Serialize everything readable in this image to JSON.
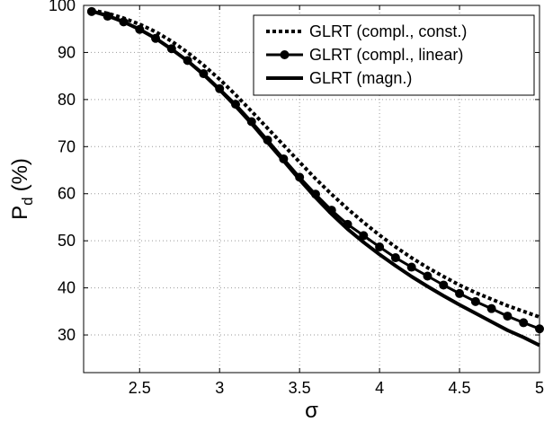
{
  "chart_data": {
    "type": "line",
    "title": "",
    "xlabel": "σ",
    "ylabel_main": "P",
    "ylabel_sub": "d",
    "ylabel_unit": "(%)",
    "xlim": [
      2.15,
      5.0
    ],
    "ylim": [
      22,
      100
    ],
    "xticks": [
      2.5,
      3,
      3.5,
      4,
      4.5,
      5
    ],
    "xtick_labels": [
      "2.5",
      "3",
      "3.5",
      "4",
      "4.5",
      "5"
    ],
    "yticks": [
      30,
      40,
      50,
      60,
      70,
      80,
      90,
      100
    ],
    "ytick_labels": [
      "30",
      "40",
      "50",
      "60",
      "70",
      "80",
      "90",
      "100"
    ],
    "grid": true,
    "legend_position": "top-right",
    "series": [
      {
        "name": "GLRT (compl., const.)",
        "style": "dotted",
        "x": [
          2.2,
          2.3,
          2.4,
          2.5,
          2.6,
          2.7,
          2.8,
          2.9,
          3.0,
          3.1,
          3.2,
          3.3,
          3.4,
          3.5,
          3.6,
          3.7,
          3.8,
          3.9,
          4.0,
          4.1,
          4.2,
          4.3,
          4.4,
          4.5,
          4.6,
          4.7,
          4.8,
          4.9,
          5.0
        ],
        "values": [
          99.0,
          98.3,
          97.3,
          96.0,
          94.4,
          92.4,
          90.0,
          87.3,
          84.3,
          81.0,
          77.5,
          73.9,
          70.3,
          66.7,
          63.2,
          59.9,
          56.8,
          53.9,
          51.2,
          48.7,
          46.4,
          44.3,
          42.4,
          40.6,
          39.0,
          37.6,
          36.2,
          35.0,
          33.8
        ]
      },
      {
        "name": "GLRT (compl., linear)",
        "style": "solid-markers",
        "x": [
          2.2,
          2.3,
          2.4,
          2.5,
          2.6,
          2.7,
          2.8,
          2.9,
          3.0,
          3.1,
          3.2,
          3.3,
          3.4,
          3.5,
          3.6,
          3.7,
          3.8,
          3.9,
          4.0,
          4.1,
          4.2,
          4.3,
          4.4,
          4.5,
          4.6,
          4.7,
          4.8,
          4.9,
          5.0
        ],
        "values": [
          98.7,
          97.7,
          96.5,
          94.9,
          93.0,
          90.8,
          88.3,
          85.5,
          82.3,
          79.0,
          75.3,
          71.4,
          67.4,
          63.5,
          59.9,
          56.5,
          53.5,
          51.1,
          48.7,
          46.4,
          44.4,
          42.5,
          40.6,
          38.8,
          37.1,
          35.6,
          34.0,
          32.6,
          31.3
        ]
      },
      {
        "name": "GLRT (magn.)",
        "style": "solid",
        "x": [
          2.2,
          2.3,
          2.4,
          2.5,
          2.6,
          2.7,
          2.8,
          2.9,
          3.0,
          3.1,
          3.2,
          3.3,
          3.4,
          3.5,
          3.6,
          3.7,
          3.8,
          3.9,
          4.0,
          4.1,
          4.2,
          4.3,
          4.4,
          4.5,
          4.6,
          4.7,
          4.8,
          4.9,
          5.0
        ],
        "values": [
          98.8,
          97.8,
          96.5,
          94.9,
          93.0,
          90.7,
          88.2,
          85.3,
          82.1,
          78.6,
          74.9,
          70.9,
          67.0,
          63.0,
          59.2,
          55.7,
          52.5,
          49.7,
          47.1,
          44.7,
          42.4,
          40.3,
          38.3,
          36.4,
          34.6,
          32.8,
          31.0,
          29.5,
          27.8
        ]
      }
    ]
  }
}
